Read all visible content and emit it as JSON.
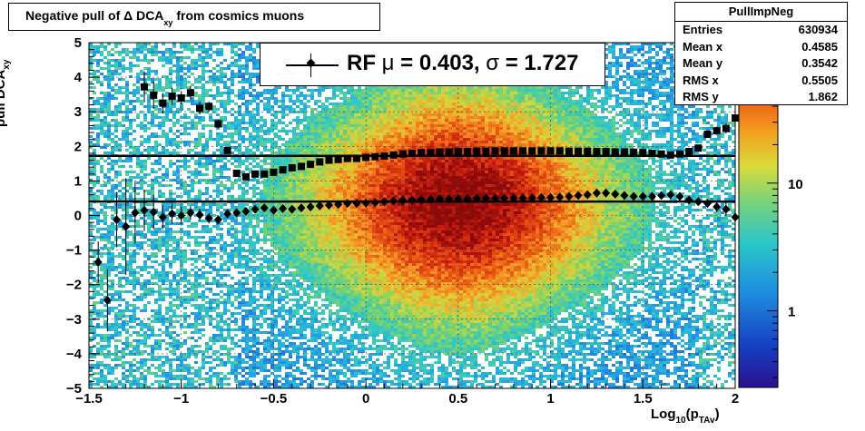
{
  "chart_data": {
    "type": "heatmap",
    "title_main": "Negative pull of ",
    "title_delta": "Δ",
    "title_mid": " DCA",
    "title_sub": "xy",
    "title_tail": "  from cosmics muons",
    "xlabel_main": "Log",
    "xlabel_sub": "10",
    "xlabel_paren": "(p",
    "xlabel_sub2": "TAv",
    "xlabel_close": ")",
    "ylabel_main": "pull DCA",
    "ylabel_sub": "xy",
    "xlim": [
      -1.5,
      2
    ],
    "ylim": [
      -5,
      5
    ],
    "x_ticks": [
      "−1.5",
      "−1",
      "−0.5",
      "0",
      "0.5",
      "1",
      "1.5",
      "2"
    ],
    "x_tick_values": [
      -1.5,
      -1,
      -0.5,
      0,
      0.5,
      1,
      1.5,
      2
    ],
    "y_ticks": [
      "−5",
      "−4",
      "−3",
      "−2",
      "−1",
      "0",
      "1",
      "2",
      "3",
      "4",
      "5"
    ],
    "y_tick_values": [
      -5,
      -4,
      -3,
      -2,
      -1,
      0,
      1,
      2,
      3,
      4,
      5
    ],
    "grid": true,
    "colorbar": {
      "scale": "log",
      "labels": [
        "10",
        "1"
      ],
      "label_values": [
        10,
        1
      ]
    },
    "stats": {
      "name": "PullImpNeg",
      "rows": [
        {
          "label": "Entries",
          "value": "630934"
        },
        {
          "label": "Mean x",
          "value": "0.4585"
        },
        {
          "label": "Mean y",
          "value": "0.3542"
        },
        {
          "label": "RMS x",
          "value": "0.5505"
        },
        {
          "label": "RMS y",
          "value": "1.862"
        }
      ]
    },
    "legend": {
      "prefix": "RF ",
      "mu_sym": "μ",
      "mid": " =  0.403, ",
      "sigma_sym": "σ",
      "tail": " =   1.727"
    },
    "fit_lines": [
      {
        "name": "sigma",
        "y": 1.727
      },
      {
        "name": "mu",
        "y": 0.403
      }
    ],
    "series": [
      {
        "marker": "diamond",
        "x": [
          -1.45,
          -1.4,
          -1.35,
          -1.3,
          -1.25,
          -1.2,
          -1.15,
          -1.1,
          -1.05,
          -1,
          -0.95,
          -0.9,
          -0.85,
          -0.8,
          -0.75,
          -0.7,
          -0.65,
          -0.6,
          -0.55,
          -0.5,
          -0.45,
          -0.4,
          -0.35,
          -0.3,
          -0.25,
          -0.2,
          -0.15,
          -0.1,
          -0.05,
          0,
          0.05,
          0.1,
          0.15,
          0.2,
          0.25,
          0.3,
          0.35,
          0.4,
          0.45,
          0.5,
          0.55,
          0.6,
          0.65,
          0.7,
          0.75,
          0.8,
          0.85,
          0.9,
          0.95,
          1,
          1.05,
          1.1,
          1.15,
          1.2,
          1.25,
          1.3,
          1.35,
          1.4,
          1.45,
          1.5,
          1.55,
          1.6,
          1.65,
          1.7,
          1.75,
          1.8,
          1.85,
          1.9,
          1.95,
          2
        ],
        "y": [
          -1.35,
          -2.45,
          -0.12,
          -0.32,
          0.08,
          0.15,
          0.1,
          -0.05,
          0.05,
          0.0,
          0.08,
          0.02,
          -0.08,
          -0.12,
          0.05,
          0.08,
          0.12,
          0.18,
          0.22,
          0.15,
          0.2,
          0.18,
          0.22,
          0.25,
          0.28,
          0.3,
          0.32,
          0.35,
          0.35,
          0.36,
          0.37,
          0.4,
          0.42,
          0.44,
          0.45,
          0.46,
          0.47,
          0.48,
          0.48,
          0.48,
          0.48,
          0.49,
          0.5,
          0.5,
          0.5,
          0.5,
          0.51,
          0.51,
          0.52,
          0.52,
          0.53,
          0.55,
          0.58,
          0.6,
          0.65,
          0.65,
          0.62,
          0.58,
          0.55,
          0.55,
          0.55,
          0.58,
          0.6,
          0.55,
          0.45,
          0.4,
          0.35,
          0.25,
          0.18,
          -0.05
        ],
        "yerr": [
          0.6,
          0.9,
          0.8,
          1.4,
          0.9,
          0.6,
          0.5,
          0.35,
          0.3,
          0.25,
          0.2,
          0.18,
          0.15,
          0.12,
          0.1,
          0.08,
          0.06,
          0.05,
          0.05,
          0.04,
          0.04,
          0.03,
          0.03,
          0.03,
          0.03,
          0.03,
          0.03,
          0.03,
          0.03,
          0.03,
          0.03,
          0.03,
          0.03,
          0.03,
          0.03,
          0.03,
          0.03,
          0.03,
          0.03,
          0.03,
          0.03,
          0.03,
          0.03,
          0.03,
          0.03,
          0.03,
          0.03,
          0.03,
          0.03,
          0.03,
          0.03,
          0.03,
          0.03,
          0.03,
          0.03,
          0.03,
          0.03,
          0.03,
          0.03,
          0.03,
          0.04,
          0.05,
          0.06,
          0.07,
          0.08,
          0.1,
          0.12,
          0.15,
          0.2,
          0.3
        ]
      },
      {
        "marker": "square",
        "x": [
          -1.2,
          -1.15,
          -1.1,
          -1.05,
          -1,
          -0.95,
          -0.9,
          -0.85,
          -0.8,
          -0.75,
          -0.7,
          -0.65,
          -0.6,
          -0.55,
          -0.5,
          -0.45,
          -0.4,
          -0.35,
          -0.3,
          -0.25,
          -0.2,
          -0.15,
          -0.1,
          -0.05,
          0,
          0.05,
          0.1,
          0.15,
          0.2,
          0.25,
          0.3,
          0.35,
          0.4,
          0.45,
          0.5,
          0.55,
          0.6,
          0.65,
          0.7,
          0.75,
          0.8,
          0.85,
          0.9,
          0.95,
          1,
          1.05,
          1.1,
          1.15,
          1.2,
          1.25,
          1.3,
          1.35,
          1.4,
          1.45,
          1.5,
          1.55,
          1.6,
          1.65,
          1.7,
          1.75,
          1.8,
          1.85,
          1.9,
          1.95,
          2
        ],
        "y": [
          3.72,
          3.48,
          3.25,
          3.45,
          3.4,
          3.55,
          3.1,
          3.15,
          2.65,
          1.88,
          1.22,
          1.12,
          1.2,
          1.2,
          1.25,
          1.32,
          1.38,
          1.42,
          1.48,
          1.55,
          1.6,
          1.62,
          1.65,
          1.65,
          1.68,
          1.7,
          1.72,
          1.75,
          1.78,
          1.8,
          1.82,
          1.82,
          1.84,
          1.84,
          1.85,
          1.85,
          1.86,
          1.86,
          1.87,
          1.87,
          1.87,
          1.87,
          1.87,
          1.87,
          1.87,
          1.87,
          1.86,
          1.86,
          1.86,
          1.85,
          1.85,
          1.84,
          1.84,
          1.83,
          1.82,
          1.8,
          1.78,
          1.75,
          1.78,
          1.85,
          1.95,
          2.35,
          2.45,
          2.52,
          2.82
        ],
        "yerr": [
          0.45,
          0.4,
          0.3,
          0.25,
          0.2,
          0.2,
          0.18,
          0.15,
          0.12,
          0.08,
          0.06,
          0.05,
          0.04,
          0.04,
          0.03,
          0.03,
          0.03,
          0.03,
          0.03,
          0.03,
          0.03,
          0.03,
          0.03,
          0.03,
          0.03,
          0.03,
          0.03,
          0.03,
          0.03,
          0.03,
          0.03,
          0.03,
          0.03,
          0.03,
          0.03,
          0.03,
          0.03,
          0.03,
          0.03,
          0.03,
          0.03,
          0.03,
          0.03,
          0.03,
          0.03,
          0.03,
          0.03,
          0.03,
          0.03,
          0.03,
          0.03,
          0.03,
          0.03,
          0.03,
          0.04,
          0.04,
          0.05,
          0.05,
          0.06,
          0.07,
          0.08,
          0.1,
          0.12,
          0.15,
          0.2
        ]
      }
    ],
    "colors": {
      "low": "#3c0f9a",
      "mid": "#27c8c0",
      "high": "#9a0c0c"
    }
  }
}
